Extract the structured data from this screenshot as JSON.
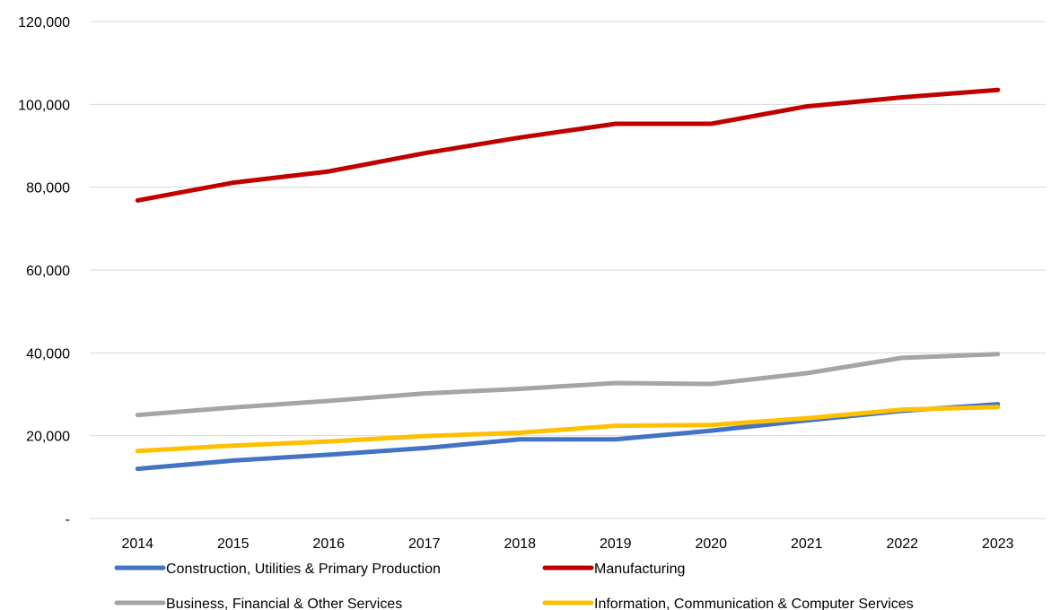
{
  "chart_data": {
    "type": "line",
    "title": "",
    "xlabel": "",
    "ylabel": "",
    "categories": [
      "2014",
      "2015",
      "2016",
      "2017",
      "2018",
      "2019",
      "2020",
      "2021",
      "2022",
      "2023"
    ],
    "ylim": [
      0,
      120000
    ],
    "yticks": [
      {
        "value": 0,
        "label": "-"
      },
      {
        "value": 20000,
        "label": "20,000"
      },
      {
        "value": 40000,
        "label": "40,000"
      },
      {
        "value": 60000,
        "label": "60,000"
      },
      {
        "value": 80000,
        "label": "80,000"
      },
      {
        "value": 100000,
        "label": "100,000"
      },
      {
        "value": 120000,
        "label": "120,000"
      }
    ],
    "grid": true,
    "legend_position": "bottom",
    "series": [
      {
        "name": "Construction, Utilities & Primary Production",
        "color": "#4472C4",
        "values": [
          12000,
          14000,
          15400,
          17000,
          19100,
          19100,
          21200,
          23700,
          26000,
          27600
        ]
      },
      {
        "name": "Manufacturing",
        "color": "#C00000",
        "values": [
          76800,
          81100,
          83800,
          88200,
          92000,
          95300,
          95300,
          99500,
          101700,
          103500
        ]
      },
      {
        "name": "Business, Financial & Other Services",
        "color": "#A5A5A5",
        "values": [
          25000,
          26800,
          28400,
          30200,
          31300,
          32700,
          32500,
          35100,
          38800,
          39700
        ]
      },
      {
        "name": "Information, Communication & Computer Services",
        "color": "#FFC000",
        "values": [
          16300,
          17600,
          18600,
          19900,
          20700,
          22400,
          22600,
          24200,
          26300,
          26900
        ]
      }
    ]
  }
}
